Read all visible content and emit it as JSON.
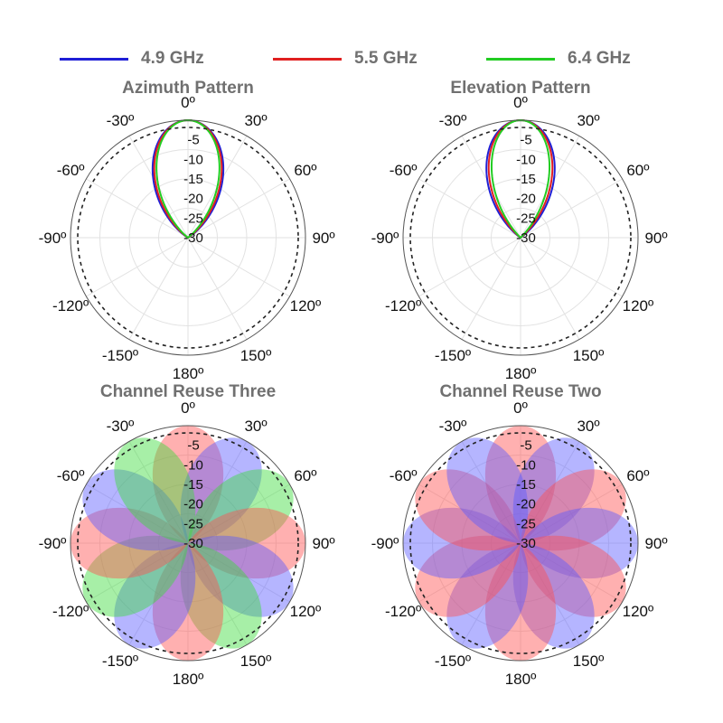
{
  "legend": [
    {
      "label": "4.9 GHz",
      "color": "#1f1fd6"
    },
    {
      "label": "5.5 GHz",
      "color": "#e02020"
    },
    {
      "label": "6.4 GHz",
      "color": "#22cc22"
    }
  ],
  "chart_data": [
    {
      "type": "polar-line",
      "title": "Azimuth Pattern",
      "angle_labels": [
        "0º",
        "30º",
        "60º",
        "90º",
        "120º",
        "150º",
        "180º",
        "-150º",
        "-120º",
        "-90º",
        "-60º",
        "-30º"
      ],
      "radial_labels": [
        "-5",
        "-10",
        "-15",
        "-20",
        "-25",
        "-30"
      ],
      "rlim": [
        -30,
        0
      ],
      "reference_ring_db": 8,
      "series": [
        {
          "name": "4.9 GHz",
          "color": "#1f1fd6",
          "half_beamwidth_deg": 60,
          "shape_exponent": 1.5
        },
        {
          "name": "5.5 GHz",
          "color": "#e02020",
          "half_beamwidth_deg": 57,
          "shape_exponent": 1.5
        },
        {
          "name": "6.4 GHz",
          "color": "#22cc22",
          "half_beamwidth_deg": 53,
          "shape_exponent": 1.5
        }
      ]
    },
    {
      "type": "polar-line",
      "title": "Elevation Pattern",
      "angle_labels": [
        "0º",
        "30º",
        "60º",
        "90º",
        "120º",
        "150º",
        "180º",
        "-150º",
        "-120º",
        "-90º",
        "-60º",
        "-30º"
      ],
      "radial_labels": [
        "-5",
        "-10",
        "-15",
        "-20",
        "-25",
        "-30"
      ],
      "rlim": [
        -30,
        0
      ],
      "reference_ring_db": 8,
      "series": [
        {
          "name": "4.9 GHz",
          "color": "#1f1fd6",
          "half_beamwidth_deg": 56,
          "shape_exponent": 1.4
        },
        {
          "name": "5.5 GHz",
          "color": "#e02020",
          "half_beamwidth_deg": 52,
          "shape_exponent": 1.4
        },
        {
          "name": "6.4 GHz",
          "color": "#22cc22",
          "half_beamwidth_deg": 47,
          "shape_exponent": 1.4
        }
      ]
    },
    {
      "type": "polar-area",
      "title": "Channel Reuse Three",
      "angle_labels": [
        "0º",
        "30º",
        "60º",
        "90º",
        "120º",
        "150º",
        "180º",
        "-150º",
        "-120º",
        "-90º",
        "-60º",
        "-30º"
      ],
      "radial_labels": [
        "-5",
        "-10",
        "-15",
        "-20",
        "-25",
        "-30"
      ],
      "rlim": [
        -30,
        0
      ],
      "reference_ring_db": 8,
      "half_beamwidth_deg": 60,
      "shape_exponent": 1.5,
      "beams": [
        {
          "azimuth_deg": 0,
          "color": "#ff5050"
        },
        {
          "azimuth_deg": 30,
          "color": "#5a5aff"
        },
        {
          "azimuth_deg": 60,
          "color": "#3cdc3c"
        },
        {
          "azimuth_deg": 90,
          "color": "#ff5050"
        },
        {
          "azimuth_deg": 120,
          "color": "#5a5aff"
        },
        {
          "azimuth_deg": 150,
          "color": "#3cdc3c"
        },
        {
          "azimuth_deg": 180,
          "color": "#ff5050"
        },
        {
          "azimuth_deg": -150,
          "color": "#5a5aff"
        },
        {
          "azimuth_deg": -120,
          "color": "#3cdc3c"
        },
        {
          "azimuth_deg": -90,
          "color": "#ff5050"
        },
        {
          "azimuth_deg": -60,
          "color": "#5a5aff"
        },
        {
          "azimuth_deg": -30,
          "color": "#3cdc3c"
        }
      ]
    },
    {
      "type": "polar-area",
      "title": "Channel Reuse Two",
      "angle_labels": [
        "0º",
        "30º",
        "60º",
        "90º",
        "120º",
        "150º",
        "180º",
        "-150º",
        "-120º",
        "-90º",
        "-60º",
        "-30º"
      ],
      "radial_labels": [
        "-5",
        "-10",
        "-15",
        "-20",
        "-25",
        "-30"
      ],
      "rlim": [
        -30,
        0
      ],
      "reference_ring_db": 8,
      "half_beamwidth_deg": 60,
      "shape_exponent": 1.5,
      "beams": [
        {
          "azimuth_deg": 0,
          "color": "#ff5050"
        },
        {
          "azimuth_deg": 30,
          "color": "#5a5aff"
        },
        {
          "azimuth_deg": 60,
          "color": "#ff5050"
        },
        {
          "azimuth_deg": 90,
          "color": "#5a5aff"
        },
        {
          "azimuth_deg": 120,
          "color": "#ff5050"
        },
        {
          "azimuth_deg": 150,
          "color": "#5a5aff"
        },
        {
          "azimuth_deg": 180,
          "color": "#ff5050"
        },
        {
          "azimuth_deg": -150,
          "color": "#5a5aff"
        },
        {
          "azimuth_deg": -120,
          "color": "#ff5050"
        },
        {
          "azimuth_deg": -90,
          "color": "#5a5aff"
        },
        {
          "azimuth_deg": -60,
          "color": "#ff5050"
        },
        {
          "azimuth_deg": -30,
          "color": "#5a5aff"
        }
      ]
    }
  ]
}
